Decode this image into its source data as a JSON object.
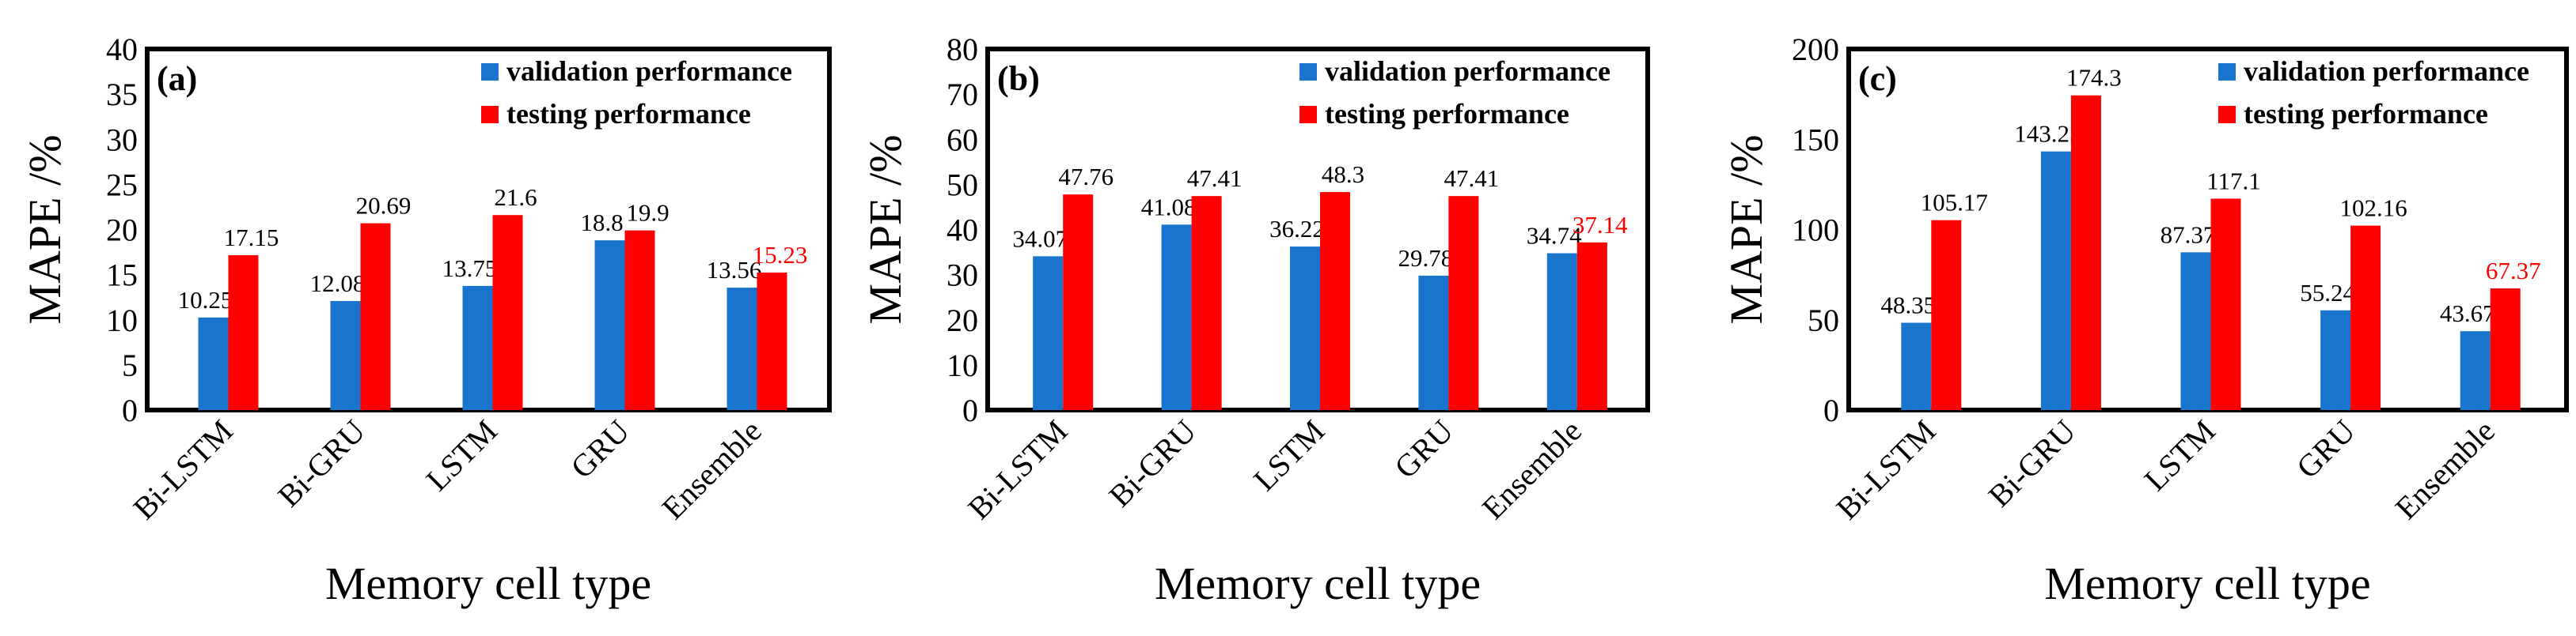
{
  "legend": {
    "validation_color": "#1874CD",
    "testing_color": "#FF0000",
    "highlight_color": "#FF0000",
    "label_color": "#000000"
  },
  "chart_data": [
    {
      "type": "bar",
      "panel_label": "(a)",
      "categories": [
        "Bi-LSTM",
        "Bi-GRU",
        "LSTM",
        "GRU",
        "Ensemble"
      ],
      "series": [
        {
          "name": "validation performance",
          "values": [
            10.25,
            12.08,
            13.75,
            18.8,
            13.56
          ],
          "labels": [
            "10.25",
            "12.08",
            "13.75",
            "18.8",
            "13.56"
          ]
        },
        {
          "name": "testing performance",
          "values": [
            17.15,
            20.69,
            21.6,
            19.9,
            15.23
          ],
          "labels": [
            "17.15",
            "20.69",
            "21.6",
            "19.9",
            "15.23"
          ]
        }
      ],
      "highlight": {
        "series": 1,
        "index": 4
      },
      "xlabel": "Memory cell type",
      "ylabel": "MAPE /%",
      "ylim": [
        0,
        40
      ],
      "yticks": [
        0,
        5,
        10,
        15,
        20,
        25,
        30,
        35,
        40
      ],
      "legend_position": "top-right",
      "grid": false
    },
    {
      "type": "bar",
      "panel_label": "(b)",
      "categories": [
        "Bi-LSTM",
        "Bi-GRU",
        "LSTM",
        "GRU",
        "Ensemble"
      ],
      "series": [
        {
          "name": "validation performance",
          "values": [
            34.07,
            41.08,
            36.22,
            29.78,
            34.74
          ],
          "labels": [
            "34.07",
            "41.08",
            "36.22",
            "29.78",
            "34.74"
          ]
        },
        {
          "name": "testing performance",
          "values": [
            47.76,
            47.41,
            48.3,
            47.41,
            37.14
          ],
          "labels": [
            "47.76",
            "47.41",
            "48.3",
            "47.41",
            "37.14"
          ]
        }
      ],
      "highlight": {
        "series": 1,
        "index": 4
      },
      "xlabel": "Memory cell type",
      "ylabel": "MAPE /%",
      "ylim": [
        0,
        80
      ],
      "yticks": [
        0,
        10,
        20,
        30,
        40,
        50,
        60,
        70,
        80
      ],
      "legend_position": "top-right",
      "grid": false
    },
    {
      "type": "bar",
      "panel_label": "(c)",
      "categories": [
        "Bi-LSTM",
        "Bi-GRU",
        "LSTM",
        "GRU",
        "Ensemble"
      ],
      "series": [
        {
          "name": "validation performance",
          "values": [
            48.35,
            143.25,
            87.37,
            55.24,
            43.67
          ],
          "labels": [
            "48.35",
            "143.25",
            "87.37",
            "55.24",
            "43.67"
          ]
        },
        {
          "name": "testing performance",
          "values": [
            105.17,
            174.3,
            117.1,
            102.16,
            67.37
          ],
          "labels": [
            "105.17",
            "174.3",
            "117.1",
            "102.16",
            "67.37"
          ]
        }
      ],
      "highlight": {
        "series": 1,
        "index": 4
      },
      "xlabel": "Memory cell type",
      "ylabel": "MAPE /%",
      "ylim": [
        0,
        200
      ],
      "yticks": [
        0,
        50,
        100,
        150,
        200
      ],
      "legend_position": "top-right",
      "grid": false
    }
  ]
}
